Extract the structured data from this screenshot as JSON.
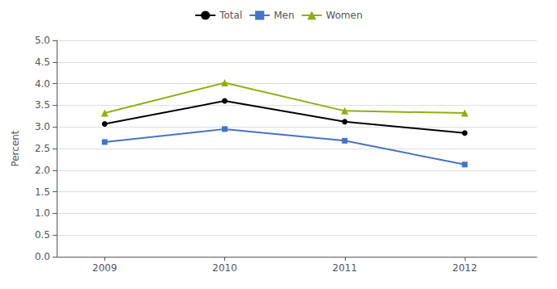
{
  "chart_data": {
    "type": "line",
    "x": [
      2009,
      2010,
      2011,
      2012
    ],
    "xlim": [
      2008.6,
      2012.6
    ],
    "xticks": [
      2009,
      2010,
      2011,
      2012
    ],
    "ylabel": "Percent",
    "ylim": [
      0.0,
      5.0
    ],
    "yticks": [
      {
        "value": 0,
        "label": "0.0"
      },
      0.5,
      {
        "value": 1,
        "label": "1.0"
      },
      1.5,
      {
        "value": 2,
        "label": "2.0"
      },
      2.5,
      {
        "value": 3,
        "label": "3.0"
      },
      3.5,
      {
        "value": 4,
        "label": "4.0"
      },
      4.5,
      {
        "value": 5,
        "label": "5.0"
      }
    ],
    "grid": true,
    "legend": "top",
    "series": [
      {
        "name": "Total",
        "color": "#000000",
        "marker": "circle",
        "values": [
          3.07,
          3.6,
          3.12,
          2.86
        ]
      },
      {
        "name": "Men",
        "color": "#4472c4",
        "marker": "square",
        "values": [
          2.65,
          2.95,
          2.68,
          2.13
        ]
      },
      {
        "name": "Women",
        "color": "#8db010",
        "marker": "triangle",
        "values": [
          3.32,
          4.02,
          3.37,
          3.32
        ]
      }
    ]
  }
}
